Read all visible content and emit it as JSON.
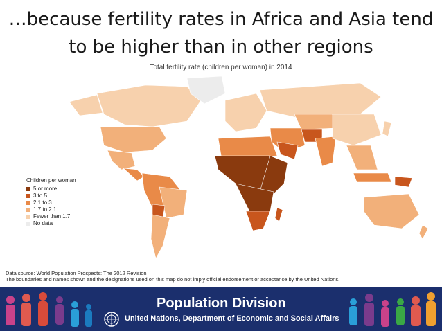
{
  "slide": {
    "title_line1": "…because fertility rates in Africa and Asia tend",
    "title_line2": "to be higher than in other regions"
  },
  "map": {
    "title": "Total fertility rate (children per woman) in 2014",
    "legend": {
      "title": "Children per woman",
      "items": [
        {
          "label": "5 or more",
          "color": "#8a3a0e"
        },
        {
          "label": "3 to 5",
          "color": "#c8561d"
        },
        {
          "label": "2.1 to 3",
          "color": "#e98a48"
        },
        {
          "label": "1.7 to 2.1",
          "color": "#f2b07a"
        },
        {
          "label": "Fewer than 1.7",
          "color": "#f7d1ad"
        },
        {
          "label": "No data",
          "color": "#ececec"
        }
      ]
    }
  },
  "source": {
    "line1": "Data source: World Population Prospects: The 2012 Revision",
    "line2": "The boundaries and names shown and the designations used on this map do not imply official endorsement or acceptance by the United Nations."
  },
  "banner": {
    "title": "Population Division",
    "subtitle": "United Nations, Department of Economic and Social Affairs",
    "background": "#1b2f6d"
  }
}
